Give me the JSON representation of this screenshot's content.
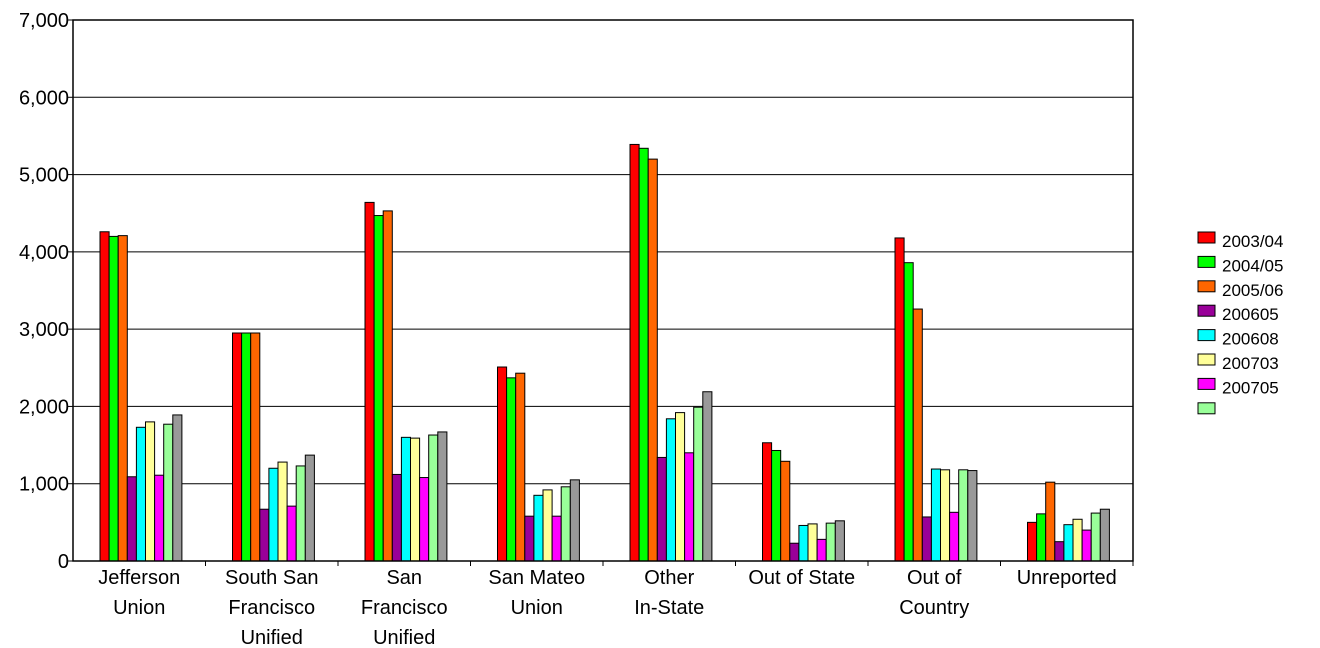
{
  "chart_data": {
    "type": "bar",
    "title": "",
    "xlabel": "",
    "ylabel": "",
    "ylim": [
      0,
      7000
    ],
    "yticks": [
      0,
      1000,
      2000,
      3000,
      4000,
      5000,
      6000,
      7000
    ],
    "ytick_labels": [
      "0",
      "1,000",
      "2,000",
      "3,000",
      "4,000",
      "5,000",
      "6,000",
      "7,000"
    ],
    "grid": true,
    "legend_position": "right",
    "categories": [
      [
        "Jefferson",
        "Union"
      ],
      [
        "South San",
        "Francisco",
        "Unified"
      ],
      [
        "San",
        "Francisco",
        "Unified"
      ],
      [
        "San Mateo",
        "Union"
      ],
      [
        "Other",
        "In-State"
      ],
      [
        "Out of State"
      ],
      [
        "Out of",
        "Country"
      ],
      [
        "Unreported"
      ]
    ],
    "series": [
      {
        "name": "2003/04",
        "color": "#ff0000",
        "values": [
          4260,
          2950,
          4640,
          2510,
          5390,
          1530,
          4180,
          500
        ]
      },
      {
        "name": "2004/05",
        "color": "#00ff00",
        "values": [
          4200,
          2950,
          4470,
          2370,
          5340,
          1430,
          3860,
          610
        ]
      },
      {
        "name": "2005/06",
        "color": "#ff6600",
        "values": [
          4210,
          2950,
          4530,
          2430,
          5200,
          1290,
          3260,
          1020
        ]
      },
      {
        "name": "200605",
        "color": "#990099",
        "values": [
          1090,
          670,
          1120,
          580,
          1340,
          230,
          570,
          250
        ]
      },
      {
        "name": "200608",
        "color": "#00ffff",
        "values": [
          1730,
          1200,
          1600,
          850,
          1840,
          460,
          1190,
          470
        ]
      },
      {
        "name": "200703",
        "color": "#ffff99",
        "values": [
          1800,
          1280,
          1590,
          920,
          1920,
          480,
          1180,
          540
        ]
      },
      {
        "name": "200705",
        "color": "#ff00ff",
        "values": [
          1110,
          710,
          1080,
          580,
          1400,
          280,
          630,
          400
        ]
      },
      {
        "name": "",
        "color": "#99ff99",
        "values": [
          1770,
          1230,
          1630,
          960,
          1990,
          490,
          1180,
          620
        ]
      },
      {
        "name": "",
        "color": "#999999",
        "values": [
          1890,
          1370,
          1670,
          1050,
          2190,
          520,
          1170,
          670
        ]
      }
    ]
  }
}
